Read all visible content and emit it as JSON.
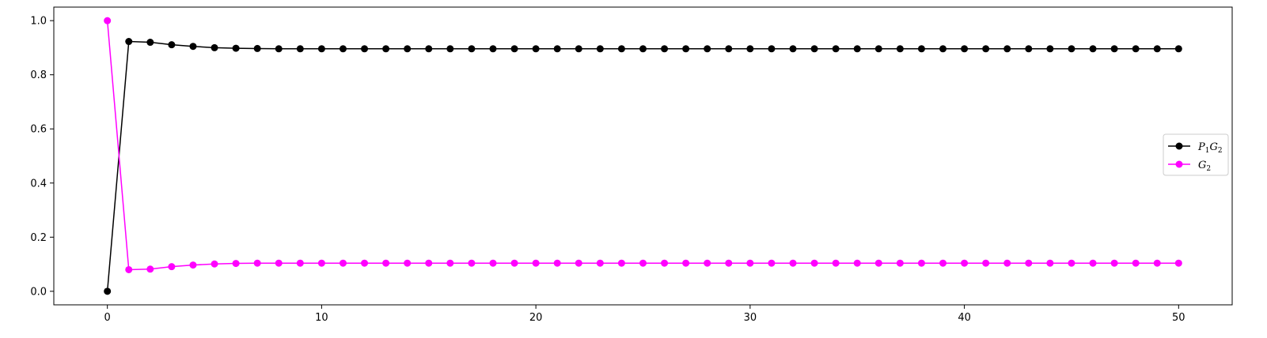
{
  "chart_data": {
    "type": "line",
    "title": "",
    "xlabel": "",
    "ylabel": "",
    "xlim": [
      -2.5,
      52.5
    ],
    "ylim": [
      -0.05,
      1.05
    ],
    "x_ticks": [
      0,
      10,
      20,
      30,
      40,
      50
    ],
    "x_tick_labels": [
      "0",
      "10",
      "20",
      "30",
      "40",
      "50"
    ],
    "y_ticks": [
      0.0,
      0.2,
      0.4,
      0.6,
      0.8,
      1.0
    ],
    "y_tick_labels": [
      "0.0",
      "0.2",
      "0.4",
      "0.6",
      "0.8",
      "1.0"
    ],
    "grid": false,
    "legend_position": "center-right",
    "x": [
      0,
      1,
      2,
      3,
      4,
      5,
      6,
      7,
      8,
      9,
      10,
      11,
      12,
      13,
      14,
      15,
      16,
      17,
      18,
      19,
      20,
      21,
      22,
      23,
      24,
      25,
      26,
      27,
      28,
      29,
      30,
      31,
      32,
      33,
      34,
      35,
      36,
      37,
      38,
      39,
      40,
      41,
      42,
      43,
      44,
      45,
      46,
      47,
      48,
      49,
      50
    ],
    "series": [
      {
        "name": "P1G2",
        "label_main_1": "P",
        "label_sub_1": "1",
        "label_main_2": "G",
        "label_sub_2": "2",
        "color": "#000000",
        "values": [
          0.0,
          0.923,
          0.92,
          0.911,
          0.905,
          0.9,
          0.898,
          0.897,
          0.896,
          0.896,
          0.896,
          0.896,
          0.896,
          0.896,
          0.896,
          0.896,
          0.896,
          0.896,
          0.896,
          0.896,
          0.896,
          0.896,
          0.896,
          0.896,
          0.896,
          0.896,
          0.896,
          0.896,
          0.896,
          0.896,
          0.896,
          0.896,
          0.896,
          0.896,
          0.896,
          0.896,
          0.896,
          0.896,
          0.896,
          0.896,
          0.896,
          0.896,
          0.896,
          0.896,
          0.896,
          0.896,
          0.896,
          0.896,
          0.896,
          0.896,
          0.896
        ]
      },
      {
        "name": "G2",
        "label_main_1": "G",
        "label_sub_1": "2",
        "color": "#ff00ff",
        "values": [
          1.0,
          0.08,
          0.082,
          0.091,
          0.097,
          0.101,
          0.103,
          0.104,
          0.104,
          0.104,
          0.104,
          0.104,
          0.104,
          0.104,
          0.104,
          0.104,
          0.104,
          0.104,
          0.104,
          0.104,
          0.104,
          0.104,
          0.104,
          0.104,
          0.104,
          0.104,
          0.104,
          0.104,
          0.104,
          0.104,
          0.104,
          0.104,
          0.104,
          0.104,
          0.104,
          0.104,
          0.104,
          0.104,
          0.104,
          0.104,
          0.104,
          0.104,
          0.104,
          0.104,
          0.104,
          0.104,
          0.104,
          0.104,
          0.104,
          0.104,
          0.104
        ]
      }
    ]
  }
}
